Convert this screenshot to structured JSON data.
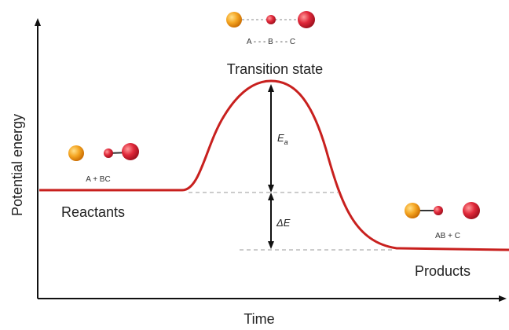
{
  "axes": {
    "y_label": "Potential energy",
    "x_label": "Time"
  },
  "states": {
    "transition": {
      "label": "Transition state",
      "molecule": "A - - - B - - - C"
    },
    "reactants": {
      "label": "Reactants",
      "molecule": "A + BC"
    },
    "products": {
      "label": "Products",
      "molecule": "AB + C"
    }
  },
  "energy_labels": {
    "activation": {
      "symbol": "E",
      "subscript": "a"
    },
    "difference": "ΔE"
  }
}
